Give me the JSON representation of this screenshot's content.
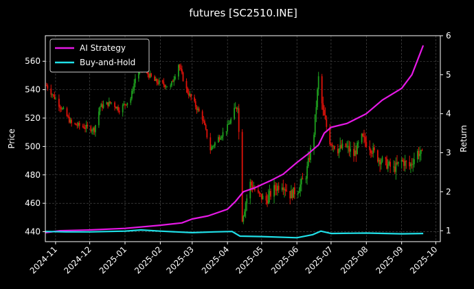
{
  "chart_data": {
    "type": "line",
    "title": "futures [SC2510.INE]",
    "ylabel": "Price",
    "ylabel_right": "Return",
    "x_ticks": [
      "2024-11",
      "2024-12",
      "2025-01",
      "2025-02",
      "2025-03",
      "2025-04",
      "2025-05",
      "2025-06",
      "2025-07",
      "2025-08",
      "2025-09",
      "2025-10"
    ],
    "x_range": [
      "2024-10-23",
      "2025-10-05"
    ],
    "ylim": [
      433,
      578
    ],
    "yticks": [
      440,
      460,
      480,
      500,
      520,
      540,
      560
    ],
    "ylim_right": [
      0.72,
      6.0
    ],
    "yticks_right": [
      1,
      2,
      3,
      4,
      5,
      6
    ],
    "grid": true,
    "legend_position": "top-left",
    "legend": [
      "AI Strategy",
      "Buy-and-Hold"
    ],
    "colors": {
      "background": "#000000",
      "ai_strategy": "#e619e6",
      "buy_and_hold": "#20e0e8",
      "candle_up": "#1e9e1e",
      "candle_down": "#e0120a",
      "grid": "#555555",
      "text": "#ffffff"
    },
    "price_series": {
      "name": "Price",
      "points": [
        [
          "2024-10-24",
          543
        ],
        [
          "2024-11-08",
          525
        ],
        [
          "2024-11-15",
          516
        ],
        [
          "2024-12-05",
          512
        ],
        [
          "2024-12-10",
          528
        ],
        [
          "2024-12-20",
          531
        ],
        [
          "2024-12-27",
          526
        ],
        [
          "2025-01-06",
          534
        ],
        [
          "2025-01-10",
          548
        ],
        [
          "2025-01-15",
          556
        ],
        [
          "2025-01-20",
          552
        ],
        [
          "2025-01-27",
          546
        ],
        [
          "2025-02-03",
          544
        ],
        [
          "2025-02-10",
          542
        ],
        [
          "2025-02-17",
          558
        ],
        [
          "2025-02-24",
          540
        ],
        [
          "2025-03-03",
          530
        ],
        [
          "2025-03-10",
          520
        ],
        [
          "2025-03-17",
          498
        ],
        [
          "2025-03-24",
          506
        ],
        [
          "2025-03-31",
          512
        ],
        [
          "2025-04-07",
          524
        ],
        [
          "2025-04-10",
          530
        ],
        [
          "2025-04-14",
          450
        ],
        [
          "2025-04-21",
          474
        ],
        [
          "2025-04-28",
          466
        ],
        [
          "2025-05-05",
          462
        ],
        [
          "2025-05-12",
          470
        ],
        [
          "2025-05-19",
          474
        ],
        [
          "2025-05-26",
          466
        ],
        [
          "2025-06-02",
          470
        ],
        [
          "2025-06-09",
          480
        ],
        [
          "2025-06-16",
          510
        ],
        [
          "2025-06-20",
          548
        ],
        [
          "2025-06-24",
          524
        ],
        [
          "2025-06-30",
          504
        ],
        [
          "2025-07-07",
          498
        ],
        [
          "2025-07-14",
          500
        ],
        [
          "2025-07-21",
          494
        ],
        [
          "2025-07-28",
          506
        ],
        [
          "2025-08-04",
          500
        ],
        [
          "2025-08-11",
          492
        ],
        [
          "2025-08-18",
          488
        ],
        [
          "2025-08-25",
          484
        ],
        [
          "2025-09-01",
          490
        ],
        [
          "2025-09-08",
          486
        ],
        [
          "2025-09-15",
          496
        ],
        [
          "2025-09-19",
          494
        ]
      ]
    },
    "series": [
      {
        "name": "AI Strategy",
        "points": [
          [
            "2024-10-23",
            0.95
          ],
          [
            "2024-11-05",
            1.0
          ],
          [
            "2024-12-01",
            1.02
          ],
          [
            "2025-01-01",
            1.06
          ],
          [
            "2025-02-01",
            1.14
          ],
          [
            "2025-02-20",
            1.2
          ],
          [
            "2025-03-01",
            1.3
          ],
          [
            "2025-03-15",
            1.38
          ],
          [
            "2025-04-01",
            1.55
          ],
          [
            "2025-04-08",
            1.75
          ],
          [
            "2025-04-15",
            2.0
          ],
          [
            "2025-04-25",
            2.1
          ],
          [
            "2025-05-10",
            2.3
          ],
          [
            "2025-05-20",
            2.45
          ],
          [
            "2025-06-01",
            2.75
          ],
          [
            "2025-06-10",
            2.95
          ],
          [
            "2025-06-20",
            3.2
          ],
          [
            "2025-06-25",
            3.5
          ],
          [
            "2025-07-01",
            3.65
          ],
          [
            "2025-07-15",
            3.75
          ],
          [
            "2025-08-01",
            4.0
          ],
          [
            "2025-08-15",
            4.35
          ],
          [
            "2025-09-01",
            4.65
          ],
          [
            "2025-09-10",
            5.0
          ],
          [
            "2025-09-20",
            5.75
          ]
        ]
      },
      {
        "name": "Buy-and-Hold",
        "points": [
          [
            "2024-10-23",
            0.98
          ],
          [
            "2024-11-10",
            0.97
          ],
          [
            "2024-12-01",
            0.97
          ],
          [
            "2025-01-01",
            0.99
          ],
          [
            "2025-01-15",
            1.02
          ],
          [
            "2025-02-01",
            0.99
          ],
          [
            "2025-03-01",
            0.95
          ],
          [
            "2025-03-20",
            0.97
          ],
          [
            "2025-04-05",
            0.98
          ],
          [
            "2025-04-12",
            0.86
          ],
          [
            "2025-05-01",
            0.85
          ],
          [
            "2025-06-01",
            0.82
          ],
          [
            "2025-06-15",
            0.9
          ],
          [
            "2025-06-22",
            0.99
          ],
          [
            "2025-07-01",
            0.93
          ],
          [
            "2025-08-01",
            0.94
          ],
          [
            "2025-09-01",
            0.92
          ],
          [
            "2025-09-20",
            0.93
          ]
        ]
      }
    ]
  }
}
